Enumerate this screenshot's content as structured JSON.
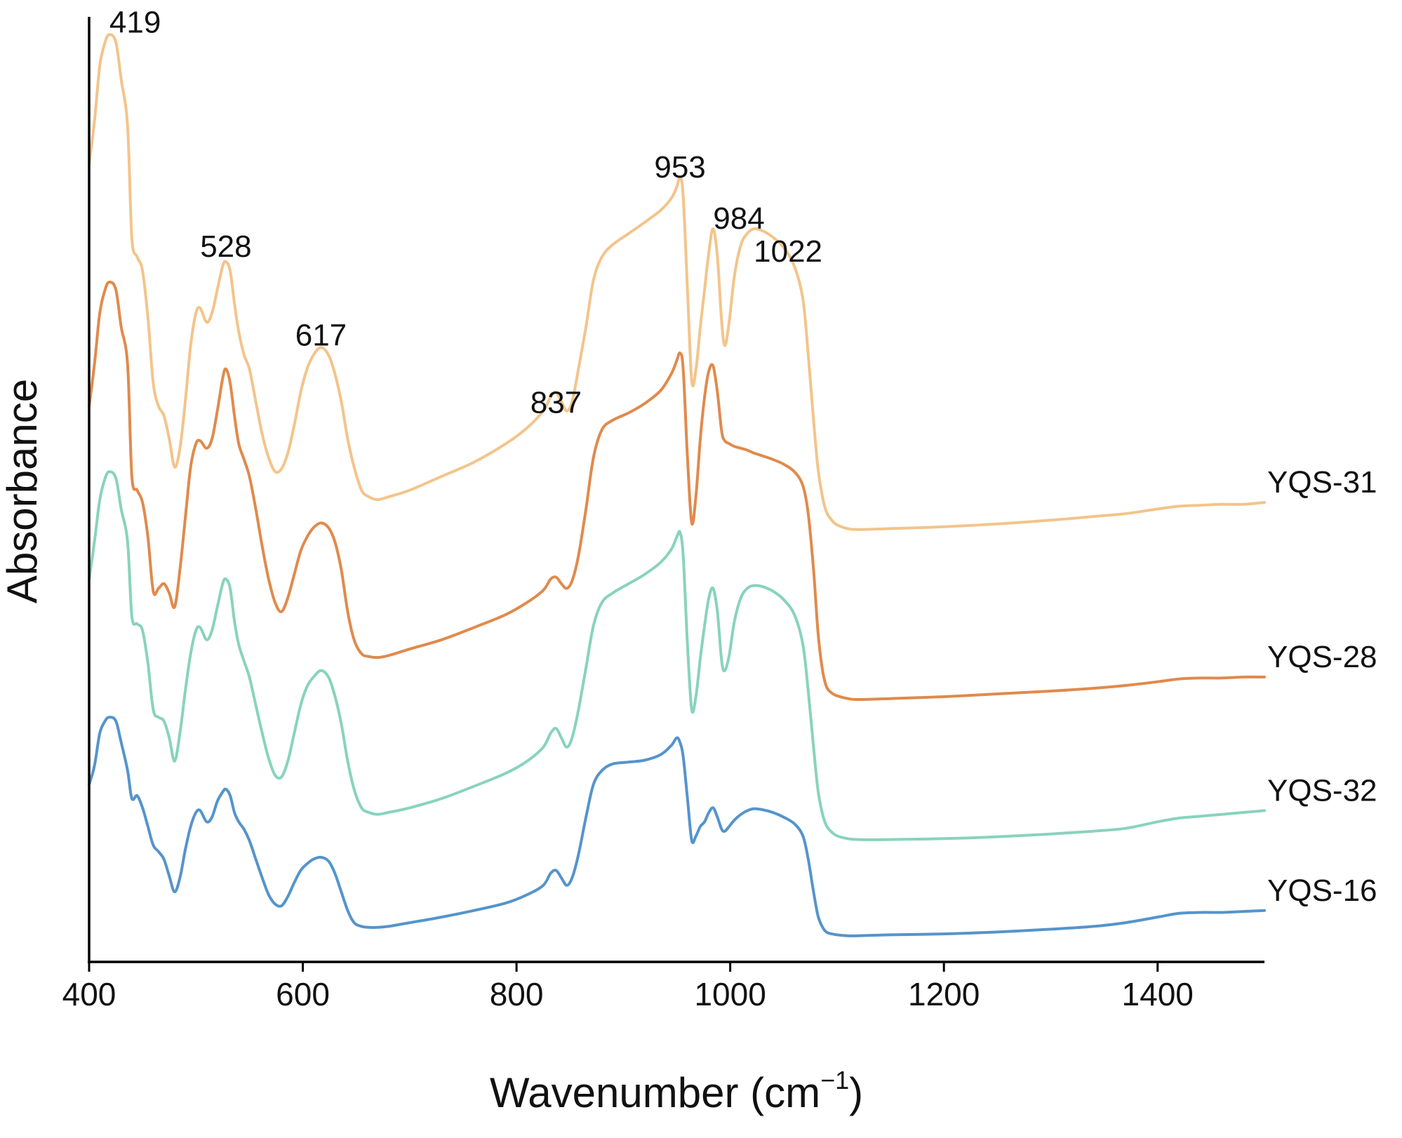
{
  "chart_data": {
    "type": "line",
    "title": "",
    "xlabel": "Wavenumber (cm−1)",
    "xlabel_parts": {
      "base": "Wavenumber (cm",
      "sup": "−1",
      "close": ")"
    },
    "ylabel": "Absorbance",
    "xlim": [
      400,
      1500
    ],
    "ylim": [
      0,
      10
    ],
    "xticks": [
      400,
      600,
      800,
      1000,
      1200,
      1400
    ],
    "xtick_labels": [
      "400",
      "600",
      "800",
      "1000",
      "1200",
      "1400"
    ],
    "yticks_shown": false,
    "grid": false,
    "legend": "inline labels at right end of each curve",
    "peak_labels": [
      {
        "text": "419",
        "x": 419,
        "y": 9.95,
        "anchor": "start"
      },
      {
        "text": "528",
        "x": 528,
        "y": 7.55,
        "anchor": "middle"
      },
      {
        "text": "617",
        "x": 617,
        "y": 6.6,
        "anchor": "middle"
      },
      {
        "text": "837",
        "x": 837,
        "y": 5.88,
        "anchor": "middle"
      },
      {
        "text": "953",
        "x": 953,
        "y": 8.4,
        "anchor": "middle"
      },
      {
        "text": "984",
        "x": 984,
        "y": 7.85,
        "anchor": "start"
      },
      {
        "text": "1022",
        "x": 1022,
        "y": 7.5,
        "anchor": "start"
      }
    ],
    "series": [
      {
        "name": "YQS-31",
        "color": "#F3C48A",
        "x": [
          400,
          405,
          410,
          415,
          419,
          425,
          430,
          436,
          440,
          445,
          450,
          455,
          460,
          465,
          470,
          475,
          480,
          485,
          490,
          495,
          500,
          504,
          510,
          515,
          520,
          525,
          528,
          532,
          536,
          540,
          545,
          550,
          556,
          562,
          568,
          574,
          580,
          586,
          592,
          598,
          604,
          610,
          617,
          624,
          630,
          636,
          642,
          648,
          655,
          662,
          670,
          680,
          700,
          730,
          760,
          790,
          810,
          825,
          832,
          837,
          842,
          847,
          852,
          858,
          865,
          872,
          880,
          890,
          905,
          920,
          935,
          945,
          950,
          953,
          956,
          960,
          964,
          968,
          972,
          976,
          980,
          984,
          988,
          992,
          995,
          999,
          1004,
          1010,
          1016,
          1022,
          1030,
          1040,
          1050,
          1060,
          1068,
          1073,
          1078,
          1082,
          1086,
          1090,
          1095,
          1100,
          1110,
          1120,
          1150,
          1200,
          1250,
          1300,
          1340,
          1370,
          1400,
          1420,
          1440,
          1460,
          1480,
          1500
        ],
        "y": [
          8.55,
          9.0,
          9.6,
          9.85,
          9.93,
          9.85,
          9.45,
          8.95,
          7.75,
          7.55,
          7.4,
          6.9,
          6.2,
          5.95,
          5.85,
          5.6,
          5.3,
          5.5,
          6.0,
          6.6,
          6.95,
          7.0,
          6.85,
          6.95,
          7.2,
          7.45,
          7.5,
          7.4,
          7.05,
          6.75,
          6.5,
          6.35,
          6.0,
          5.65,
          5.4,
          5.25,
          5.28,
          5.45,
          5.75,
          6.1,
          6.35,
          6.5,
          6.58,
          6.5,
          6.3,
          6.0,
          5.6,
          5.3,
          5.05,
          4.98,
          4.95,
          4.98,
          5.05,
          5.2,
          5.35,
          5.55,
          5.72,
          5.9,
          6.05,
          6.1,
          6.0,
          5.9,
          6.0,
          6.35,
          6.8,
          7.3,
          7.55,
          7.68,
          7.8,
          7.92,
          8.05,
          8.18,
          8.3,
          8.4,
          8.2,
          7.2,
          6.22,
          6.35,
          6.8,
          7.2,
          7.6,
          7.85,
          7.55,
          6.85,
          6.6,
          6.85,
          7.35,
          7.68,
          7.8,
          7.85,
          7.83,
          7.76,
          7.65,
          7.45,
          7.1,
          6.5,
          5.8,
          5.3,
          5.0,
          4.82,
          4.73,
          4.68,
          4.64,
          4.63,
          4.64,
          4.66,
          4.69,
          4.73,
          4.77,
          4.8,
          4.85,
          4.88,
          4.89,
          4.9,
          4.9,
          4.92
        ]
      },
      {
        "name": "YQS-28",
        "color": "#E08A4C",
        "x": [
          400,
          405,
          410,
          415,
          419,
          425,
          430,
          436,
          440,
          445,
          450,
          455,
          460,
          465,
          470,
          475,
          480,
          485,
          490,
          495,
          500,
          504,
          510,
          515,
          520,
          525,
          528,
          532,
          536,
          540,
          545,
          550,
          556,
          562,
          568,
          574,
          580,
          586,
          592,
          598,
          604,
          610,
          617,
          624,
          630,
          636,
          642,
          648,
          655,
          662,
          670,
          680,
          700,
          730,
          760,
          790,
          810,
          825,
          832,
          837,
          842,
          847,
          852,
          858,
          865,
          872,
          880,
          890,
          905,
          920,
          935,
          945,
          950,
          953,
          956,
          960,
          964,
          968,
          972,
          976,
          980,
          984,
          988,
          992,
          995,
          999,
          1004,
          1010,
          1016,
          1022,
          1030,
          1040,
          1050,
          1060,
          1068,
          1073,
          1078,
          1082,
          1086,
          1090,
          1095,
          1100,
          1110,
          1120,
          1150,
          1200,
          1250,
          1300,
          1340,
          1370,
          1400,
          1420,
          1440,
          1460,
          1480,
          1500
        ],
        "y": [
          5.95,
          6.4,
          6.95,
          7.2,
          7.28,
          7.2,
          6.8,
          6.4,
          5.2,
          5.05,
          4.92,
          4.55,
          3.97,
          4.0,
          4.05,
          3.95,
          3.8,
          4.2,
          4.75,
          5.3,
          5.55,
          5.58,
          5.5,
          5.6,
          5.9,
          6.25,
          6.35,
          6.2,
          5.85,
          5.55,
          5.38,
          5.2,
          4.85,
          4.45,
          4.1,
          3.85,
          3.75,
          3.9,
          4.15,
          4.4,
          4.55,
          4.65,
          4.7,
          4.65,
          4.5,
          4.2,
          3.75,
          3.45,
          3.3,
          3.27,
          3.26,
          3.28,
          3.35,
          3.45,
          3.58,
          3.72,
          3.85,
          3.98,
          4.1,
          4.12,
          4.05,
          4.0,
          4.08,
          4.35,
          4.85,
          5.4,
          5.7,
          5.8,
          5.88,
          5.98,
          6.12,
          6.3,
          6.44,
          6.52,
          6.35,
          5.4,
          4.7,
          5.0,
          5.6,
          6.05,
          6.33,
          6.38,
          6.1,
          5.68,
          5.58,
          5.55,
          5.52,
          5.5,
          5.48,
          5.45,
          5.42,
          5.38,
          5.33,
          5.25,
          5.1,
          4.8,
          4.2,
          3.55,
          3.15,
          2.95,
          2.88,
          2.85,
          2.82,
          2.81,
          2.82,
          2.84,
          2.87,
          2.9,
          2.93,
          2.96,
          3.0,
          3.03,
          3.04,
          3.04,
          3.05,
          3.05
        ]
      },
      {
        "name": "YQS-32",
        "color": "#88D3BD",
        "x": [
          400,
          405,
          410,
          415,
          419,
          425,
          430,
          436,
          440,
          445,
          450,
          455,
          460,
          465,
          470,
          475,
          480,
          485,
          490,
          495,
          500,
          504,
          510,
          515,
          520,
          525,
          528,
          532,
          536,
          540,
          545,
          550,
          556,
          562,
          568,
          574,
          580,
          586,
          592,
          598,
          604,
          610,
          617,
          624,
          630,
          636,
          642,
          648,
          655,
          662,
          670,
          680,
          700,
          730,
          760,
          790,
          810,
          825,
          832,
          837,
          842,
          847,
          852,
          858,
          865,
          872,
          880,
          890,
          905,
          920,
          935,
          945,
          950,
          953,
          956,
          960,
          964,
          968,
          972,
          976,
          980,
          984,
          988,
          992,
          995,
          999,
          1004,
          1010,
          1016,
          1022,
          1030,
          1040,
          1050,
          1060,
          1068,
          1073,
          1078,
          1082,
          1086,
          1090,
          1095,
          1100,
          1110,
          1120,
          1150,
          1200,
          1250,
          1300,
          1340,
          1370,
          1400,
          1420,
          1440,
          1460,
          1480,
          1500
        ],
        "y": [
          4.1,
          4.5,
          4.95,
          5.18,
          5.25,
          5.18,
          4.85,
          4.5,
          3.7,
          3.62,
          3.55,
          3.2,
          2.7,
          2.62,
          2.58,
          2.4,
          2.15,
          2.45,
          2.9,
          3.3,
          3.55,
          3.58,
          3.45,
          3.55,
          3.8,
          4.05,
          4.1,
          4.0,
          3.65,
          3.4,
          3.22,
          3.05,
          2.75,
          2.45,
          2.18,
          2.0,
          1.98,
          2.15,
          2.45,
          2.75,
          2.95,
          3.05,
          3.12,
          3.05,
          2.85,
          2.55,
          2.15,
          1.85,
          1.65,
          1.6,
          1.58,
          1.6,
          1.65,
          1.75,
          1.88,
          2.02,
          2.15,
          2.3,
          2.45,
          2.5,
          2.4,
          2.3,
          2.4,
          2.7,
          3.15,
          3.6,
          3.85,
          3.95,
          4.05,
          4.15,
          4.28,
          4.42,
          4.55,
          4.6,
          4.35,
          3.4,
          2.7,
          2.85,
          3.25,
          3.6,
          3.9,
          4.0,
          3.75,
          3.22,
          3.12,
          3.28,
          3.65,
          3.9,
          4.0,
          4.03,
          4.02,
          3.97,
          3.88,
          3.72,
          3.4,
          2.9,
          2.3,
          1.85,
          1.6,
          1.46,
          1.39,
          1.35,
          1.32,
          1.31,
          1.31,
          1.32,
          1.34,
          1.37,
          1.4,
          1.43,
          1.5,
          1.54,
          1.56,
          1.58,
          1.6,
          1.62
        ]
      },
      {
        "name": "YQS-16",
        "color": "#5494CC",
        "x": [
          400,
          405,
          410,
          415,
          419,
          425,
          430,
          436,
          440,
          445,
          450,
          455,
          460,
          465,
          470,
          475,
          480,
          485,
          490,
          495,
          500,
          504,
          510,
          515,
          520,
          525,
          528,
          532,
          536,
          540,
          545,
          550,
          556,
          562,
          568,
          574,
          580,
          586,
          592,
          598,
          604,
          610,
          617,
          624,
          630,
          636,
          642,
          648,
          655,
          662,
          670,
          680,
          700,
          730,
          760,
          790,
          810,
          825,
          832,
          837,
          842,
          847,
          852,
          858,
          865,
          872,
          880,
          890,
          905,
          920,
          935,
          945,
          950,
          953,
          956,
          960,
          964,
          968,
          972,
          976,
          980,
          984,
          988,
          992,
          995,
          999,
          1004,
          1010,
          1016,
          1022,
          1030,
          1040,
          1050,
          1060,
          1068,
          1073,
          1078,
          1082,
          1086,
          1090,
          1095,
          1100,
          1110,
          1120,
          1150,
          1200,
          1250,
          1300,
          1340,
          1370,
          1400,
          1420,
          1440,
          1460,
          1480,
          1500
        ],
        "y": [
          1.9,
          2.1,
          2.45,
          2.58,
          2.62,
          2.58,
          2.35,
          2.05,
          1.75,
          1.78,
          1.65,
          1.45,
          1.25,
          1.18,
          1.1,
          0.92,
          0.75,
          0.9,
          1.2,
          1.45,
          1.6,
          1.62,
          1.5,
          1.55,
          1.72,
          1.82,
          1.85,
          1.78,
          1.6,
          1.5,
          1.42,
          1.3,
          1.1,
          0.9,
          0.72,
          0.62,
          0.6,
          0.7,
          0.85,
          0.98,
          1.05,
          1.1,
          1.12,
          1.08,
          0.95,
          0.75,
          0.55,
          0.42,
          0.38,
          0.37,
          0.37,
          0.38,
          0.42,
          0.48,
          0.55,
          0.63,
          0.72,
          0.82,
          0.95,
          0.98,
          0.9,
          0.82,
          0.9,
          1.15,
          1.55,
          1.9,
          2.05,
          2.12,
          2.14,
          2.16,
          2.22,
          2.32,
          2.4,
          2.35,
          2.2,
          1.75,
          1.3,
          1.35,
          1.45,
          1.5,
          1.6,
          1.65,
          1.55,
          1.42,
          1.4,
          1.45,
          1.52,
          1.58,
          1.62,
          1.64,
          1.63,
          1.6,
          1.55,
          1.48,
          1.35,
          1.1,
          0.75,
          0.5,
          0.38,
          0.32,
          0.3,
          0.29,
          0.28,
          0.28,
          0.29,
          0.3,
          0.32,
          0.35,
          0.38,
          0.42,
          0.48,
          0.52,
          0.53,
          0.53,
          0.54,
          0.55
        ]
      }
    ]
  }
}
